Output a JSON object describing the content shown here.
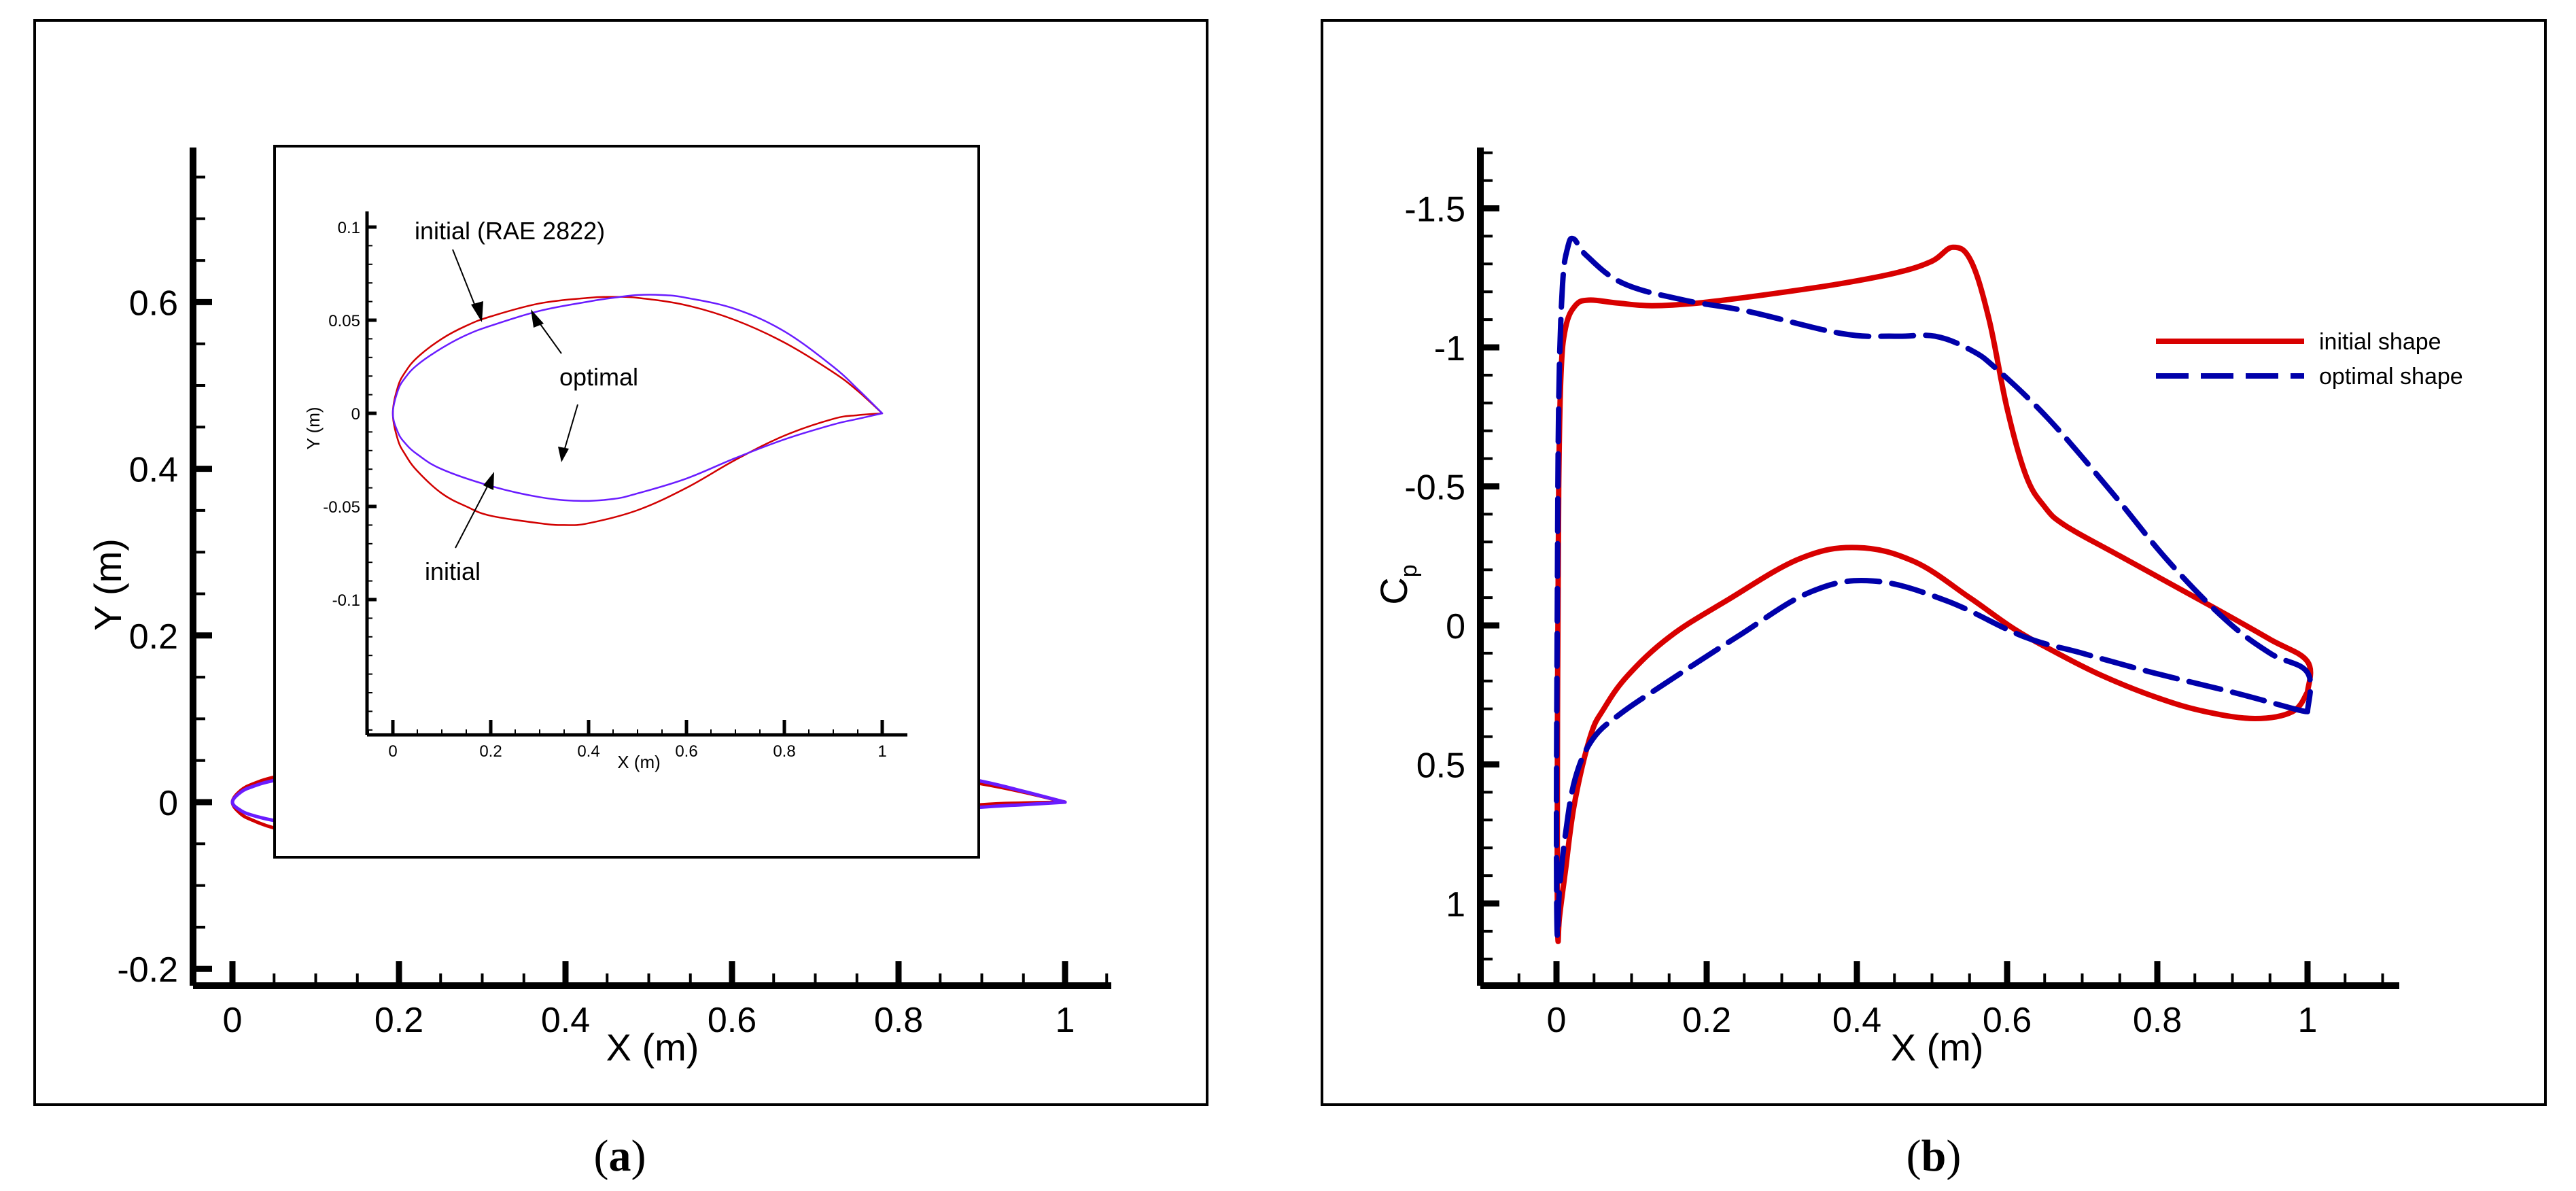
{
  "figure": {
    "panels": [
      {
        "id": "a",
        "caption_open": "(",
        "caption_letter": "a",
        "caption_close": ")"
      },
      {
        "id": "b",
        "caption_open": "(",
        "caption_letter": "b",
        "caption_close": ")"
      }
    ]
  },
  "colors": {
    "initial_geom": "#d10000",
    "optimal_geom": "#6a1cff",
    "initial_cp": "#d80000",
    "optimal_cp": "#0000aa",
    "axes": "#000000"
  },
  "chart_data": [
    {
      "id": "panel-a-main",
      "type": "line",
      "title": "",
      "xlabel": "X (m)",
      "ylabel": "Y (m)",
      "xlim": [
        -0.05,
        1.05
      ],
      "ylim": [
        -0.22,
        0.78
      ],
      "xticks": [
        0,
        0.2,
        0.4,
        0.6,
        0.8,
        1
      ],
      "xtick_labels": [
        "0",
        "0.2",
        "0.4",
        "0.6",
        "0.8",
        "1"
      ],
      "yticks": [
        -0.2,
        0,
        0.2,
        0.4,
        0.6
      ],
      "ytick_labels": [
        "-0.2",
        "0",
        "0.2",
        "0.4",
        "0.6"
      ],
      "grid": false,
      "series": [
        {
          "name": "initial (RAE 2822)",
          "style": "solid",
          "x": [
            1.0,
            0.95,
            0.9,
            0.8,
            0.7,
            0.6,
            0.5,
            0.45,
            0.4,
            0.3,
            0.2,
            0.15,
            0.1,
            0.05,
            0.025,
            0.01,
            0.0,
            0.01,
            0.025,
            0.05,
            0.1,
            0.15,
            0.2,
            0.3,
            0.35,
            0.4,
            0.5,
            0.6,
            0.7,
            0.8,
            0.9,
            0.95,
            1.0
          ],
          "y": [
            0.0,
            0.012,
            0.022,
            0.038,
            0.05,
            0.058,
            0.062,
            0.0625,
            0.062,
            0.059,
            0.052,
            0.047,
            0.04,
            0.03,
            0.022,
            0.014,
            0.0,
            -0.014,
            -0.022,
            -0.031,
            -0.043,
            -0.05,
            -0.055,
            -0.059,
            -0.06,
            -0.059,
            -0.052,
            -0.04,
            -0.025,
            -0.012,
            -0.003,
            -0.001,
            0.0
          ]
        },
        {
          "name": "optimal",
          "style": "solid",
          "x": [
            1.0,
            0.95,
            0.9,
            0.8,
            0.7,
            0.6,
            0.55,
            0.5,
            0.45,
            0.4,
            0.3,
            0.2,
            0.15,
            0.1,
            0.05,
            0.025,
            0.01,
            0.0,
            0.01,
            0.025,
            0.05,
            0.1,
            0.2,
            0.3,
            0.38,
            0.45,
            0.5,
            0.6,
            0.7,
            0.8,
            0.9,
            0.95,
            1.0
          ],
          "y": [
            0.0,
            0.013,
            0.025,
            0.044,
            0.056,
            0.062,
            0.0635,
            0.0635,
            0.062,
            0.06,
            0.055,
            0.047,
            0.042,
            0.035,
            0.026,
            0.019,
            0.012,
            0.0,
            -0.01,
            -0.016,
            -0.022,
            -0.03,
            -0.039,
            -0.045,
            -0.047,
            -0.046,
            -0.043,
            -0.035,
            -0.024,
            -0.014,
            -0.006,
            -0.003,
            0.0
          ]
        }
      ]
    },
    {
      "id": "panel-a-inset",
      "type": "line",
      "title": "",
      "xlabel": "X (m)",
      "ylabel": "Y (m)",
      "xlim": [
        -0.05,
        1.05
      ],
      "ylim": [
        -0.14,
        0.11
      ],
      "xticks": [
        0,
        0.2,
        0.4,
        0.6,
        0.8,
        1
      ],
      "xtick_labels": [
        "0",
        "0.2",
        "0.4",
        "0.6",
        "0.8",
        "1"
      ],
      "yticks": [
        -0.1,
        -0.05,
        0,
        0.05,
        0.1
      ],
      "ytick_labels": [
        "-0.1",
        "-0.05",
        "0",
        "0.05",
        "0.1"
      ],
      "grid": false,
      "annotations": [
        {
          "text": "initial (RAE 2822)",
          "points_to": [
            0.18,
            0.05
          ]
        },
        {
          "text": "optimal",
          "points_to": [
            [
              0.27,
              0.052
            ],
            [
              0.34,
              -0.046
            ]
          ]
        },
        {
          "text": "initial",
          "points_to": [
            0.21,
            -0.053
          ]
        }
      ],
      "series_ref": "same as panel-a-main (y exaggerated)"
    },
    {
      "id": "panel-b",
      "type": "line",
      "title": "",
      "xlabel": "X (m)",
      "ylabel": "Cp",
      "ylabel_main": "C",
      "ylabel_sub": "p",
      "xlim": [
        -0.1,
        1.1
      ],
      "ylim_inverted": [
        1.3,
        -1.7
      ],
      "xticks": [
        0,
        0.2,
        0.4,
        0.6,
        0.8,
        1
      ],
      "xtick_labels": [
        "0",
        "0.2",
        "0.4",
        "0.6",
        "0.8",
        "1"
      ],
      "yticks": [
        -1.5,
        -1,
        -0.5,
        0,
        0.5,
        1
      ],
      "ytick_labels": [
        "-1.5",
        "-1",
        "-0.5",
        "0",
        "0.5",
        "1"
      ],
      "grid": false,
      "legend_position": "upper right (inside)",
      "series": [
        {
          "name": "initial shape",
          "style": "solid",
          "x": [
            1.0,
            0.98,
            0.93,
            0.864,
            0.8,
            0.726,
            0.66,
            0.608,
            0.55,
            0.476,
            0.4,
            0.324,
            0.227,
            0.151,
            0.095,
            0.063,
            0.045,
            0.024,
            0.012,
            0.004,
            0.002,
            0.001,
            0.0015,
            0.003,
            0.006,
            0.012,
            0.025,
            0.043,
            0.08,
            0.127,
            0.19,
            0.28,
            0.38,
            0.455,
            0.5,
            0.528,
            0.552,
            0.576,
            0.6,
            0.625,
            0.649,
            0.677,
            0.75,
            0.878,
            0.95,
            1.0,
            1.0
          ],
          "y": [
            0.24,
            0.31,
            0.335,
            0.31,
            0.26,
            0.18,
            0.09,
            0.01,
            -0.1,
            -0.23,
            -0.28,
            -0.24,
            -0.09,
            0.04,
            0.18,
            0.3,
            0.4,
            0.64,
            0.88,
            1.05,
            1.13,
            0.9,
            0.2,
            -0.5,
            -0.9,
            -1.07,
            -1.15,
            -1.17,
            -1.16,
            -1.15,
            -1.16,
            -1.19,
            -1.23,
            -1.27,
            -1.31,
            -1.36,
            -1.31,
            -1.1,
            -0.78,
            -0.54,
            -0.43,
            -0.36,
            -0.25,
            -0.06,
            0.05,
            0.13,
            0.24
          ]
        },
        {
          "name": "optimal shape",
          "style": "dashed",
          "x": [
            1.0,
            0.982,
            0.9,
            0.794,
            0.7,
            0.622,
            0.518,
            0.421,
            0.338,
            0.241,
            0.144,
            0.084,
            0.048,
            0.025,
            0.012,
            0.004,
            0.001,
            0.0,
            0.001,
            0.003,
            0.008,
            0.015,
            0.023,
            0.04,
            0.089,
            0.17,
            0.254,
            0.379,
            0.45,
            0.504,
            0.552,
            0.587,
            0.656,
            0.739,
            0.815,
            0.891,
            0.95,
            1.0,
            1.0
          ],
          "y": [
            0.31,
            0.3,
            0.24,
            0.17,
            0.1,
            0.04,
            -0.09,
            -0.16,
            -0.12,
            0.04,
            0.21,
            0.32,
            0.41,
            0.55,
            0.75,
            0.95,
            1.11,
            0.7,
            0.0,
            -0.8,
            -1.22,
            -1.36,
            -1.39,
            -1.33,
            -1.23,
            -1.17,
            -1.13,
            -1.05,
            -1.04,
            -1.04,
            -0.99,
            -0.92,
            -0.74,
            -0.48,
            -0.23,
            -0.02,
            0.1,
            0.17,
            0.31
          ]
        }
      ]
    }
  ],
  "legend": {
    "items": [
      {
        "label": "initial shape",
        "style": "solid"
      },
      {
        "label": "optimal shape",
        "style": "dashed"
      }
    ]
  }
}
